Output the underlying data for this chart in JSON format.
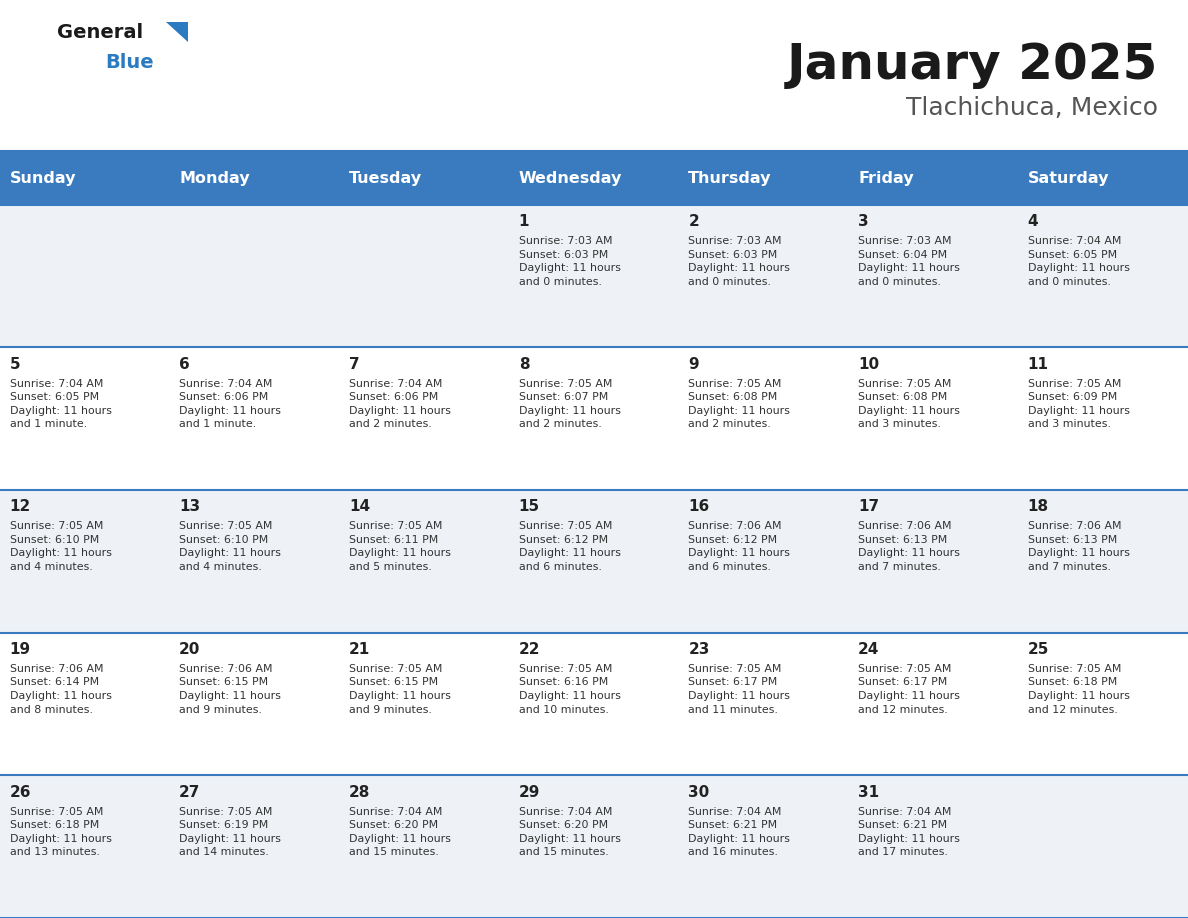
{
  "title": "January 2025",
  "subtitle": "Tlachichuca, Mexico",
  "header_color": "#3a7bbf",
  "header_text_color": "#ffffff",
  "day_names": [
    "Sunday",
    "Monday",
    "Tuesday",
    "Wednesday",
    "Thursday",
    "Friday",
    "Saturday"
  ],
  "cell_bg_even": "#eef2f7",
  "cell_bg_odd": "#ffffff",
  "row_separator_color": "#3a7bbf",
  "text_color": "#333333",
  "day_num_color": "#222222",
  "days": [
    {
      "day": 1,
      "col": 3,
      "row": 0,
      "sunrise": "7:03 AM",
      "sunset": "6:03 PM",
      "hours": 11,
      "minutes": 0
    },
    {
      "day": 2,
      "col": 4,
      "row": 0,
      "sunrise": "7:03 AM",
      "sunset": "6:03 PM",
      "hours": 11,
      "minutes": 0
    },
    {
      "day": 3,
      "col": 5,
      "row": 0,
      "sunrise": "7:03 AM",
      "sunset": "6:04 PM",
      "hours": 11,
      "minutes": 0
    },
    {
      "day": 4,
      "col": 6,
      "row": 0,
      "sunrise": "7:04 AM",
      "sunset": "6:05 PM",
      "hours": 11,
      "minutes": 0
    },
    {
      "day": 5,
      "col": 0,
      "row": 1,
      "sunrise": "7:04 AM",
      "sunset": "6:05 PM",
      "hours": 11,
      "minutes": 1
    },
    {
      "day": 6,
      "col": 1,
      "row": 1,
      "sunrise": "7:04 AM",
      "sunset": "6:06 PM",
      "hours": 11,
      "minutes": 1
    },
    {
      "day": 7,
      "col": 2,
      "row": 1,
      "sunrise": "7:04 AM",
      "sunset": "6:06 PM",
      "hours": 11,
      "minutes": 2
    },
    {
      "day": 8,
      "col": 3,
      "row": 1,
      "sunrise": "7:05 AM",
      "sunset": "6:07 PM",
      "hours": 11,
      "minutes": 2
    },
    {
      "day": 9,
      "col": 4,
      "row": 1,
      "sunrise": "7:05 AM",
      "sunset": "6:08 PM",
      "hours": 11,
      "minutes": 2
    },
    {
      "day": 10,
      "col": 5,
      "row": 1,
      "sunrise": "7:05 AM",
      "sunset": "6:08 PM",
      "hours": 11,
      "minutes": 3
    },
    {
      "day": 11,
      "col": 6,
      "row": 1,
      "sunrise": "7:05 AM",
      "sunset": "6:09 PM",
      "hours": 11,
      "minutes": 3
    },
    {
      "day": 12,
      "col": 0,
      "row": 2,
      "sunrise": "7:05 AM",
      "sunset": "6:10 PM",
      "hours": 11,
      "minutes": 4
    },
    {
      "day": 13,
      "col": 1,
      "row": 2,
      "sunrise": "7:05 AM",
      "sunset": "6:10 PM",
      "hours": 11,
      "minutes": 4
    },
    {
      "day": 14,
      "col": 2,
      "row": 2,
      "sunrise": "7:05 AM",
      "sunset": "6:11 PM",
      "hours": 11,
      "minutes": 5
    },
    {
      "day": 15,
      "col": 3,
      "row": 2,
      "sunrise": "7:05 AM",
      "sunset": "6:12 PM",
      "hours": 11,
      "minutes": 6
    },
    {
      "day": 16,
      "col": 4,
      "row": 2,
      "sunrise": "7:06 AM",
      "sunset": "6:12 PM",
      "hours": 11,
      "minutes": 6
    },
    {
      "day": 17,
      "col": 5,
      "row": 2,
      "sunrise": "7:06 AM",
      "sunset": "6:13 PM",
      "hours": 11,
      "minutes": 7
    },
    {
      "day": 18,
      "col": 6,
      "row": 2,
      "sunrise": "7:06 AM",
      "sunset": "6:13 PM",
      "hours": 11,
      "minutes": 7
    },
    {
      "day": 19,
      "col": 0,
      "row": 3,
      "sunrise": "7:06 AM",
      "sunset": "6:14 PM",
      "hours": 11,
      "minutes": 8
    },
    {
      "day": 20,
      "col": 1,
      "row": 3,
      "sunrise": "7:06 AM",
      "sunset": "6:15 PM",
      "hours": 11,
      "minutes": 9
    },
    {
      "day": 21,
      "col": 2,
      "row": 3,
      "sunrise": "7:05 AM",
      "sunset": "6:15 PM",
      "hours": 11,
      "minutes": 9
    },
    {
      "day": 22,
      "col": 3,
      "row": 3,
      "sunrise": "7:05 AM",
      "sunset": "6:16 PM",
      "hours": 11,
      "minutes": 10
    },
    {
      "day": 23,
      "col": 4,
      "row": 3,
      "sunrise": "7:05 AM",
      "sunset": "6:17 PM",
      "hours": 11,
      "minutes": 11
    },
    {
      "day": 24,
      "col": 5,
      "row": 3,
      "sunrise": "7:05 AM",
      "sunset": "6:17 PM",
      "hours": 11,
      "minutes": 12
    },
    {
      "day": 25,
      "col": 6,
      "row": 3,
      "sunrise": "7:05 AM",
      "sunset": "6:18 PM",
      "hours": 11,
      "minutes": 12
    },
    {
      "day": 26,
      "col": 0,
      "row": 4,
      "sunrise": "7:05 AM",
      "sunset": "6:18 PM",
      "hours": 11,
      "minutes": 13
    },
    {
      "day": 27,
      "col": 1,
      "row": 4,
      "sunrise": "7:05 AM",
      "sunset": "6:19 PM",
      "hours": 11,
      "minutes": 14
    },
    {
      "day": 28,
      "col": 2,
      "row": 4,
      "sunrise": "7:04 AM",
      "sunset": "6:20 PM",
      "hours": 11,
      "minutes": 15
    },
    {
      "day": 29,
      "col": 3,
      "row": 4,
      "sunrise": "7:04 AM",
      "sunset": "6:20 PM",
      "hours": 11,
      "minutes": 15
    },
    {
      "day": 30,
      "col": 4,
      "row": 4,
      "sunrise": "7:04 AM",
      "sunset": "6:21 PM",
      "hours": 11,
      "minutes": 16
    },
    {
      "day": 31,
      "col": 5,
      "row": 4,
      "sunrise": "7:04 AM",
      "sunset": "6:21 PM",
      "hours": 11,
      "minutes": 17
    }
  ]
}
